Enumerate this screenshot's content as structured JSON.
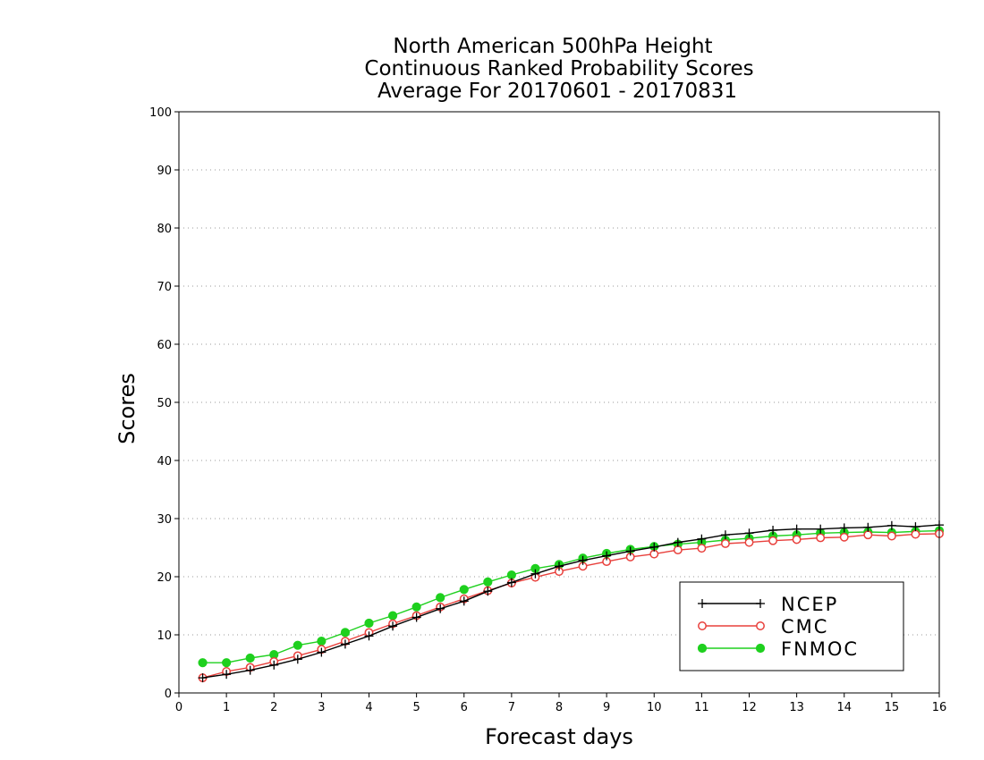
{
  "chart_data": {
    "type": "line",
    "title_lines": [
      "North American 500hPa Height",
      "Continuous Ranked Probability Scores",
      "Average For 20170601 - 20170831"
    ],
    "xlabel": "Forecast days",
    "ylabel": "Scores",
    "xlim": [
      0,
      16
    ],
    "ylim": [
      0,
      100
    ],
    "xticks": [
      0,
      1,
      2,
      3,
      4,
      5,
      6,
      7,
      8,
      9,
      10,
      11,
      12,
      13,
      14,
      15,
      16
    ],
    "yticks": [
      0,
      10,
      20,
      30,
      40,
      50,
      60,
      70,
      80,
      90,
      100
    ],
    "grid": true,
    "legend_position": "bottom-right",
    "x": [
      0.5,
      1,
      1.5,
      2,
      2.5,
      3,
      3.5,
      4,
      4.5,
      5,
      5.5,
      6,
      6.5,
      7,
      7.5,
      8,
      8.5,
      9,
      9.5,
      10,
      10.5,
      11,
      11.5,
      12,
      12.5,
      13,
      13.5,
      14,
      14.5,
      15,
      15.5,
      16
    ],
    "series": [
      {
        "name": "NCEP",
        "color": "#000000",
        "marker": "plus",
        "values": [
          2.6,
          3.2,
          3.9,
          4.8,
          5.8,
          7.0,
          8.4,
          9.8,
          11.5,
          13.0,
          14.5,
          15.8,
          17.5,
          19.0,
          20.5,
          21.8,
          22.8,
          23.6,
          24.4,
          25.1,
          25.9,
          26.5,
          27.2,
          27.5,
          28.0,
          28.2,
          28.2,
          28.4,
          28.5,
          28.8,
          28.6,
          28.9
        ]
      },
      {
        "name": "CMC",
        "color": "#e8403c",
        "marker": "open-circle",
        "values": [
          2.6,
          3.7,
          4.4,
          5.4,
          6.4,
          7.5,
          8.9,
          10.4,
          11.9,
          13.3,
          14.8,
          16.2,
          17.6,
          18.9,
          19.9,
          20.9,
          21.8,
          22.6,
          23.4,
          23.9,
          24.6,
          24.9,
          25.7,
          25.9,
          26.2,
          26.4,
          26.7,
          26.8,
          27.2,
          27.0,
          27.3,
          27.4
        ]
      },
      {
        "name": "FNMOC",
        "color": "#1ed01e",
        "marker": "filled-circle",
        "values": [
          5.2,
          5.2,
          6.0,
          6.6,
          8.2,
          8.9,
          10.4,
          12.0,
          13.3,
          14.8,
          16.4,
          17.8,
          19.1,
          20.3,
          21.4,
          22.1,
          23.2,
          24.0,
          24.7,
          25.2,
          25.6,
          25.9,
          26.3,
          26.6,
          27.0,
          27.2,
          27.5,
          27.6,
          27.7,
          27.6,
          27.8,
          27.9
        ]
      }
    ]
  }
}
